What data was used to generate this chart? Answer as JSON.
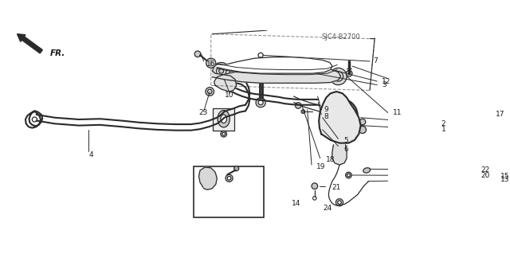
{
  "background_color": "#ffffff",
  "diagram_code": "SJC4-B2700",
  "fr_label": "FR.",
  "line_color": "#2a2a2a",
  "text_color": "#1a1a1a",
  "figsize": [
    6.4,
    3.19
  ],
  "dpi": 100,
  "label_configs": {
    "1": [
      0.718,
      0.49,
      "1"
    ],
    "2": [
      0.718,
      0.51,
      "2"
    ],
    "3": [
      0.636,
      0.718,
      "3"
    ],
    "4": [
      0.232,
      0.355,
      "4"
    ],
    "5": [
      0.56,
      0.435,
      "5"
    ],
    "6": [
      0.562,
      0.39,
      "6"
    ],
    "7": [
      0.61,
      0.84,
      "7"
    ],
    "8": [
      0.53,
      0.555,
      "8"
    ],
    "9": [
      0.53,
      0.572,
      "9"
    ],
    "10": [
      0.368,
      0.665,
      "10"
    ],
    "11": [
      0.642,
      0.572,
      "11"
    ],
    "12": [
      0.636,
      0.735,
      "12"
    ],
    "13": [
      0.82,
      0.228,
      "13"
    ],
    "14": [
      0.478,
      0.105,
      "14"
    ],
    "15": [
      0.82,
      0.245,
      "15"
    ],
    "16": [
      0.338,
      0.828,
      "16"
    ],
    "17": [
      0.812,
      0.565,
      "17"
    ],
    "18": [
      0.535,
      0.33,
      "18"
    ],
    "19": [
      0.52,
      0.295,
      "19"
    ],
    "20": [
      0.79,
      0.248,
      "20"
    ],
    "21": [
      0.545,
      0.188,
      "21"
    ],
    "22": [
      0.79,
      0.278,
      "22"
    ],
    "23": [
      0.328,
      0.572,
      "23"
    ],
    "24": [
      0.53,
      0.082,
      "24"
    ]
  }
}
